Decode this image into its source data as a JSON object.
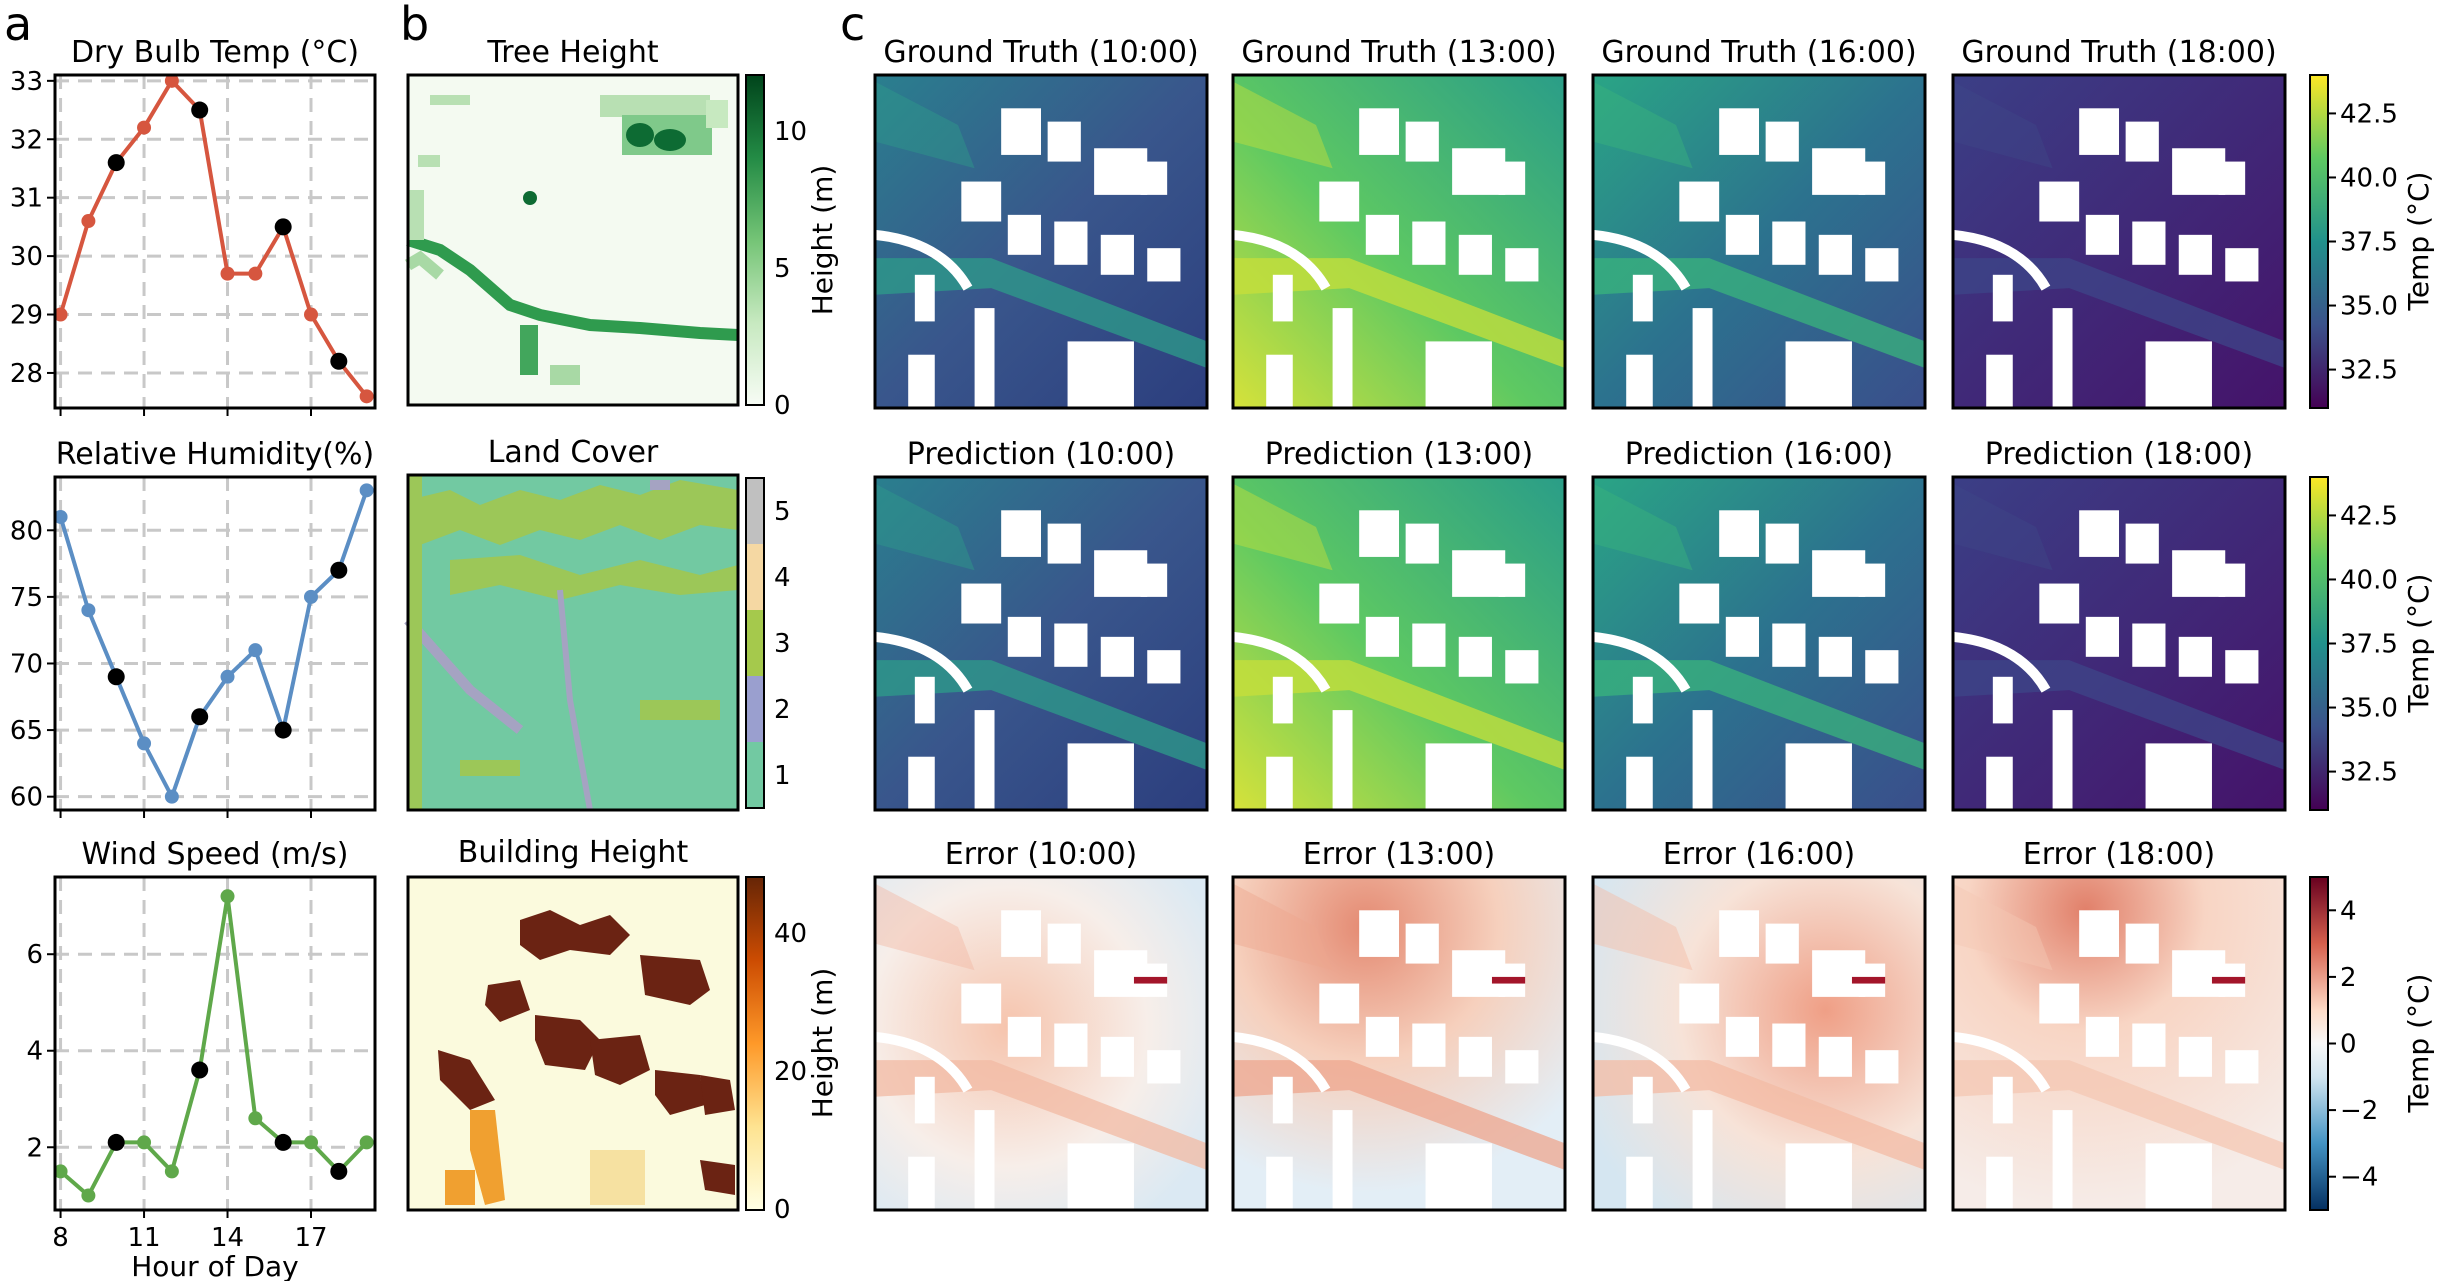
{
  "panel_labels": [
    "a",
    "b",
    "c"
  ],
  "colors": {
    "dry_bulb": "#d6563f",
    "humidity": "#5b8ec4",
    "wind": "#5fa84a",
    "marker_black": "#000000",
    "grid": "#c8c8c8"
  },
  "chart_data": [
    {
      "type": "line",
      "title": "Dry Bulb Temp (°C)",
      "x": [
        8,
        9,
        10,
        11,
        12,
        13,
        14,
        15,
        16,
        17,
        18,
        19
      ],
      "values": [
        29.0,
        30.6,
        31.6,
        32.2,
        33.0,
        32.5,
        29.7,
        29.7,
        30.5,
        29.0,
        28.2,
        27.6
      ],
      "highlighted_x": [
        10,
        13,
        16,
        18
      ],
      "yticks": [
        28,
        29,
        30,
        31,
        32,
        33
      ],
      "ylim": [
        27.4,
        33.1
      ],
      "xlim": [
        7.8,
        19.3
      ],
      "xticks": [
        8,
        11,
        14,
        17
      ],
      "xlabel": "",
      "ylabel": ""
    },
    {
      "type": "line",
      "title": "Relative Humidity(%)",
      "x": [
        8,
        9,
        10,
        11,
        12,
        13,
        14,
        15,
        16,
        17,
        18,
        19
      ],
      "values": [
        81,
        74,
        69,
        64,
        60,
        66,
        69,
        71,
        65,
        75,
        77,
        83
      ],
      "highlighted_x": [
        10,
        13,
        16,
        18
      ],
      "yticks": [
        60,
        65,
        70,
        75,
        80
      ],
      "ylim": [
        59,
        84
      ],
      "xlim": [
        7.8,
        19.3
      ],
      "xticks": [
        8,
        11,
        14,
        17
      ],
      "xlabel": "",
      "ylabel": ""
    },
    {
      "type": "line",
      "title": "Wind Speed (m/s)",
      "x": [
        8,
        9,
        10,
        11,
        12,
        13,
        14,
        15,
        16,
        17,
        18,
        19
      ],
      "values": [
        1.5,
        1.0,
        2.1,
        2.1,
        1.5,
        3.6,
        7.2,
        2.6,
        2.1,
        2.1,
        1.5,
        2.1
      ],
      "highlighted_x": [
        10,
        13,
        16,
        18
      ],
      "yticks": [
        2,
        4,
        6
      ],
      "ylim": [
        0.7,
        7.6
      ],
      "xlim": [
        7.8,
        19.3
      ],
      "xticks": [
        8,
        11,
        14,
        17
      ],
      "xticklabels": [
        "8",
        "11",
        "14",
        "17"
      ],
      "xlabel": "Hour of Day",
      "ylabel": ""
    },
    {
      "type": "heatmap",
      "title": "Tree Height",
      "colorbar": {
        "label": "Height (m)",
        "ticks": [
          "0",
          "5",
          "10"
        ],
        "range": [
          0,
          12
        ],
        "colormap": "Greens"
      }
    },
    {
      "type": "heatmap",
      "title": "Land Cover",
      "colorbar": {
        "label": "",
        "ticks": [
          "1",
          "2",
          "3",
          "4",
          "5"
        ],
        "range": [
          0.5,
          5.5
        ],
        "colormap": "categorical"
      }
    },
    {
      "type": "heatmap",
      "title": "Building Height",
      "colorbar": {
        "label": "Height (m)",
        "ticks": [
          "0",
          "20",
          "40"
        ],
        "range": [
          0,
          48
        ],
        "colormap": "YlOrBr"
      }
    },
    {
      "type": "heatmap",
      "title_row": "Ground Truth",
      "titles": [
        "Ground Truth (10:00)",
        "Ground Truth (13:00)",
        "Ground Truth (16:00)",
        "Ground Truth (18:00)"
      ],
      "colorbar": {
        "label": "Temp (°C)",
        "ticks": [
          "32.5",
          "35.0",
          "37.5",
          "40.0",
          "42.5"
        ],
        "range": [
          31,
          44
        ],
        "colormap": "viridis"
      }
    },
    {
      "type": "heatmap",
      "title_row": "Prediction",
      "titles": [
        "Prediction (10:00)",
        "Prediction (13:00)",
        "Prediction (16:00)",
        "Prediction (18:00)"
      ],
      "colorbar": {
        "label": "Temp (°C)",
        "ticks": [
          "32.5",
          "35.0",
          "37.5",
          "40.0",
          "42.5"
        ],
        "range": [
          31,
          44
        ],
        "colormap": "viridis"
      }
    },
    {
      "type": "heatmap",
      "title_row": "Error",
      "titles": [
        "Error (10:00)",
        "Error (13:00)",
        "Error (16:00)",
        "Error (18:00)"
      ],
      "colorbar": {
        "label": "Temp (°C)",
        "ticks": [
          "4",
          "2",
          "0",
          "−2",
          "−4"
        ],
        "range": [
          -5,
          5
        ],
        "colormap": "RdBu_r"
      }
    }
  ]
}
